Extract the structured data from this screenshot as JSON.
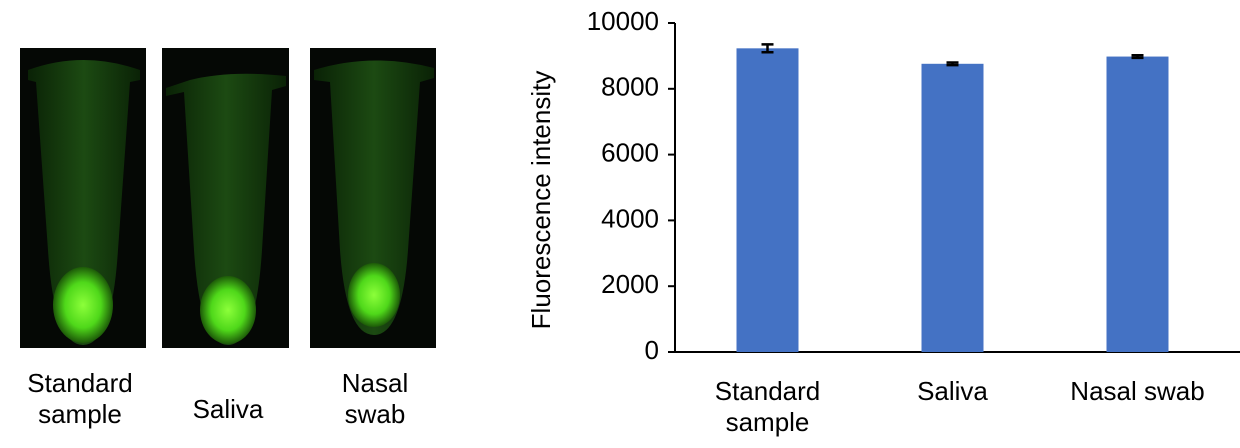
{
  "photos": {
    "labels": [
      "Standard sample",
      "Saliva",
      "Nasal swab"
    ]
  },
  "chart_data": {
    "type": "bar",
    "y_label": "Fluorescence intensity",
    "categories": [
      "Standard sample",
      "Saliva",
      "Nasal swab"
    ],
    "values": [
      9230,
      8760,
      8980
    ],
    "errors": [
      120,
      40,
      40
    ],
    "color": "#4472c4",
    "ylim": [
      0,
      10000
    ],
    "yticks": [
      0,
      2000,
      4000,
      6000,
      8000,
      10000
    ],
    "grid": false
  }
}
